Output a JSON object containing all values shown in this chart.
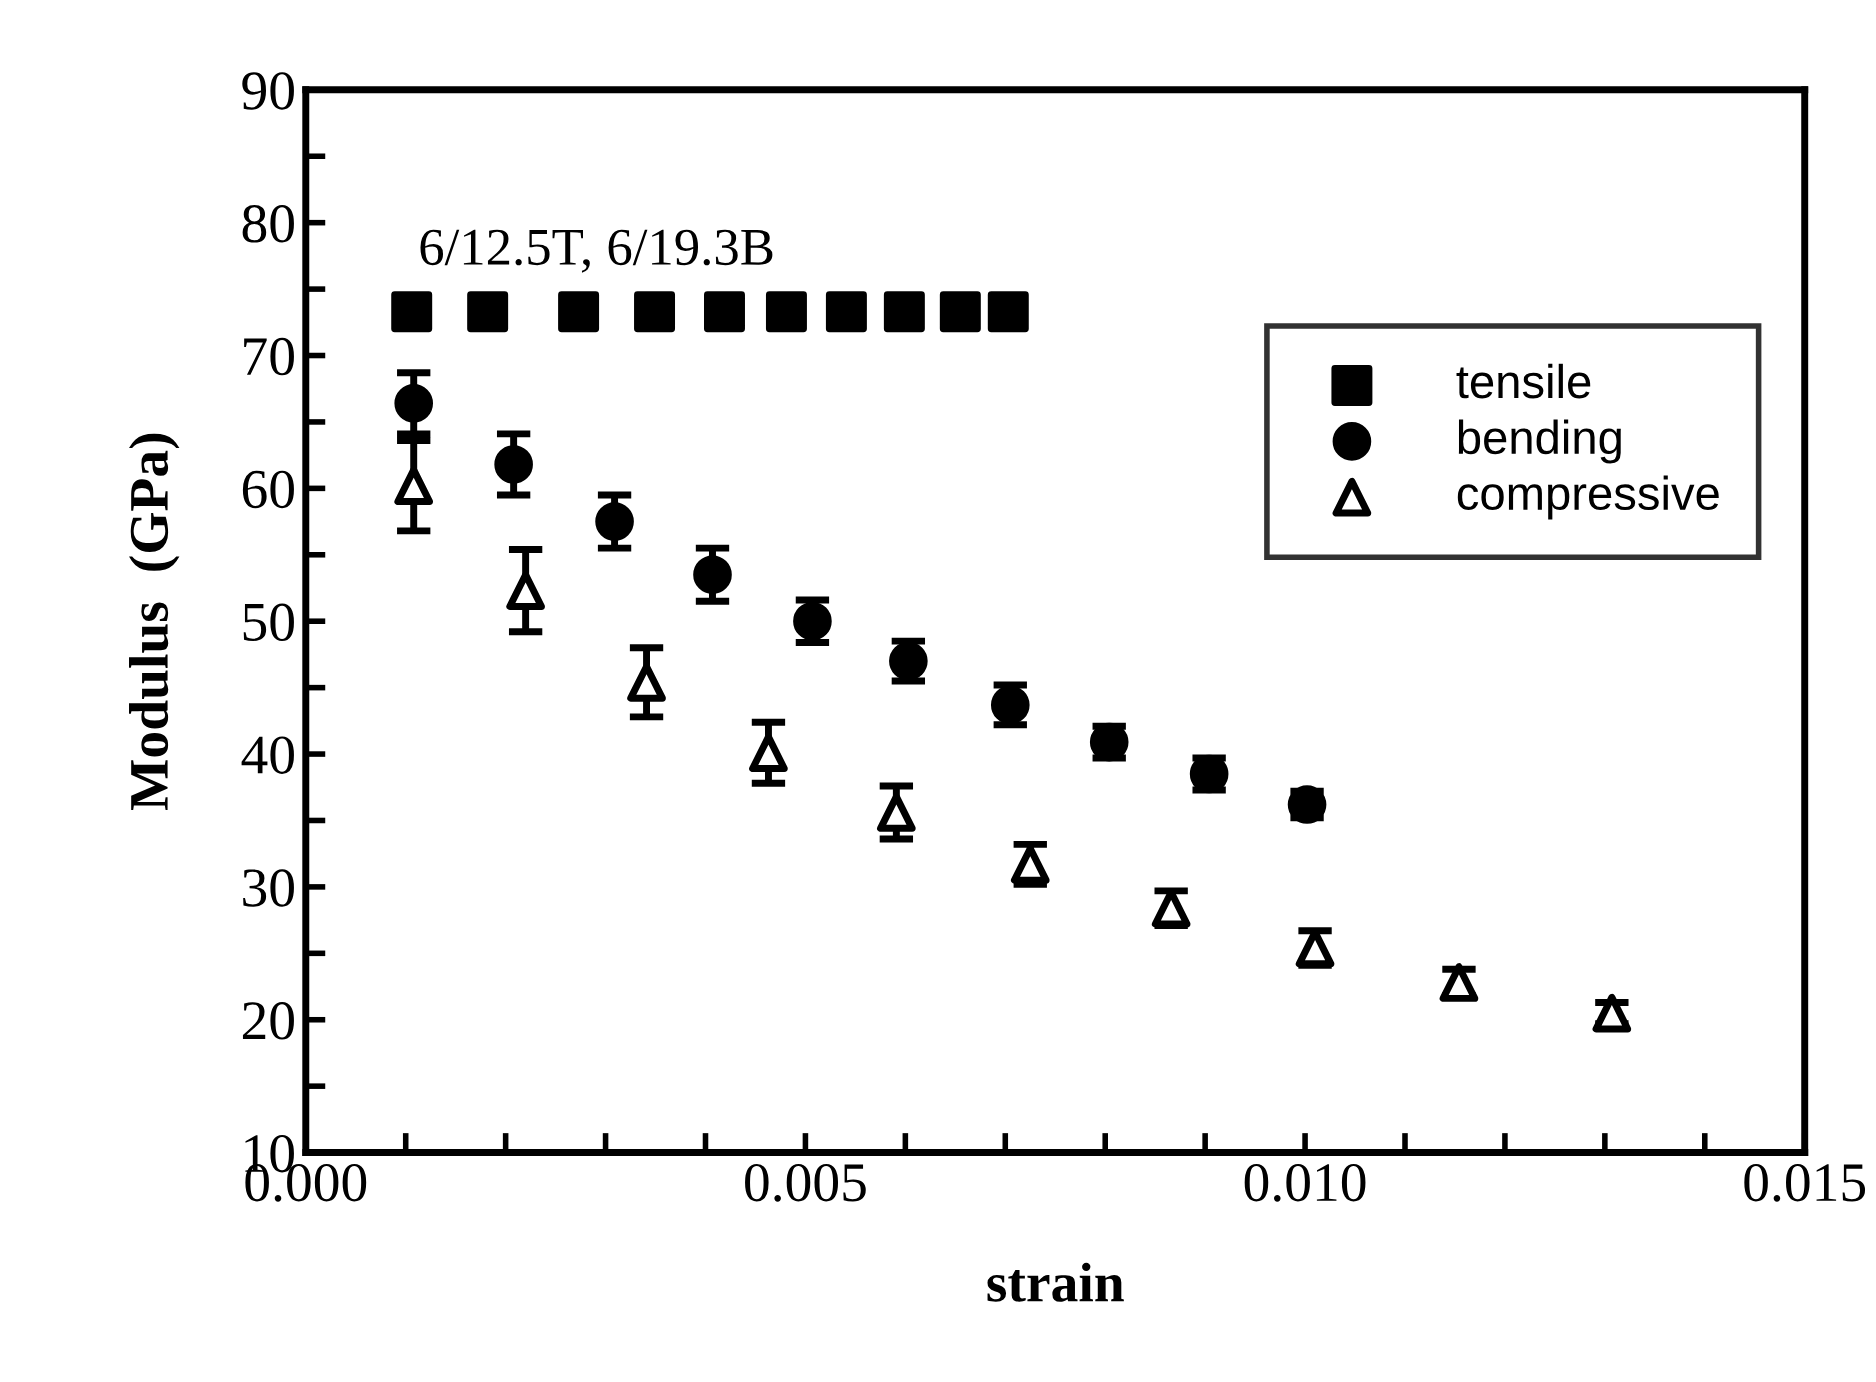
{
  "chart_data": {
    "type": "scatter",
    "xlabel": "strain",
    "ylabel": "Modulus  (GPa)",
    "annotations": [
      "6/12.5T, 6/19.3B"
    ],
    "xlim": [
      0,
      0.015
    ],
    "ylim": [
      10,
      90
    ],
    "xticks": [
      {
        "value": 0,
        "label": "0.000"
      },
      {
        "value": 0.001,
        "label": null
      },
      {
        "value": 0.002,
        "label": null
      },
      {
        "value": 0.003,
        "label": null
      },
      {
        "value": 0.004,
        "label": null
      },
      {
        "value": 0.005,
        "label": "0.005"
      },
      {
        "value": 0.006,
        "label": null
      },
      {
        "value": 0.007,
        "label": null
      },
      {
        "value": 0.008,
        "label": null
      },
      {
        "value": 0.009,
        "label": null
      },
      {
        "value": 0.01,
        "label": "0.010"
      },
      {
        "value": 0.011,
        "label": null
      },
      {
        "value": 0.012,
        "label": null
      },
      {
        "value": 0.013,
        "label": null
      },
      {
        "value": 0.014,
        "label": null
      },
      {
        "value": 0.015,
        "label": "0.015"
      }
    ],
    "yticks": [
      10,
      {
        "value": 15,
        "label": null
      },
      20,
      {
        "value": 25,
        "label": null
      },
      30,
      {
        "value": 35,
        "label": null
      },
      40,
      {
        "value": 45,
        "label": null
      },
      50,
      {
        "value": 55,
        "label": null
      },
      60,
      {
        "value": 65,
        "label": null
      },
      70,
      {
        "value": 75,
        "label": null
      },
      80,
      {
        "value": 85,
        "label": null
      },
      90
    ],
    "grid": false,
    "legend": "top right",
    "series": [
      {
        "name": "tensile",
        "color": "#000000",
        "marker": "square",
        "x": [
          0.00106,
          0.00182,
          0.00273,
          0.00349,
          0.00419,
          0.00481,
          0.00541,
          0.00599,
          0.00655,
          0.00703
        ],
        "values": [
          73.3,
          73.3,
          73.3,
          73.3,
          73.3,
          73.3,
          73.3,
          73.3,
          73.3,
          73.3
        ]
      },
      {
        "name": "bending",
        "color": "#000000",
        "marker": "circle",
        "x": [
          0.00108,
          0.00208,
          0.00309,
          0.00407,
          0.00507,
          0.00603,
          0.00705,
          0.00804,
          0.00904,
          0.01002
        ],
        "values": [
          66.4,
          61.8,
          57.5,
          53.5,
          50.0,
          47.0,
          43.7,
          40.9,
          38.5,
          36.2
        ],
        "errors": [
          2.3,
          2.3,
          2.0,
          2.0,
          1.6,
          1.5,
          1.5,
          1.2,
          1.2,
          1.0
        ]
      },
      {
        "name": "compressive",
        "color": "#000000",
        "marker": "triangle",
        "x": [
          0.00108,
          0.0022,
          0.00341,
          0.00463,
          0.00591,
          0.00725,
          0.00866,
          0.0101,
          0.01154,
          0.01307
        ],
        "values": [
          60.2,
          52.3,
          45.4,
          40.1,
          35.6,
          31.7,
          28.4,
          25.4,
          22.8,
          20.5
        ],
        "errors": [
          3.4,
          3.1,
          2.6,
          2.3,
          2.0,
          1.5,
          1.3,
          1.3,
          1.0,
          0.8
        ]
      }
    ]
  }
}
